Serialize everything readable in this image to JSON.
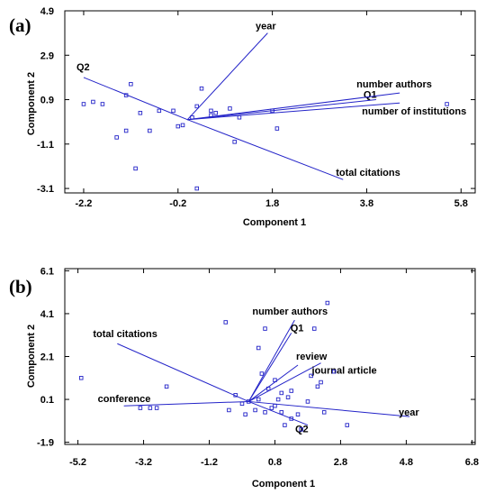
{
  "chart_data": [
    {
      "type": "scatter",
      "subtype": "biplot",
      "panel_label": "(a)",
      "xlabel": "Component 1",
      "ylabel": "Component 2",
      "xlim": [
        -2.6,
        6.1
      ],
      "ylim": [
        -3.3,
        4.9
      ],
      "xticks": [
        "-2.2",
        "-0.2",
        "1.8",
        "3.8",
        "5.8"
      ],
      "yticks": [
        "4.9",
        "2.9",
        "0.9",
        "-1.1",
        "-3.1"
      ],
      "vectors": [
        {
          "label": "year",
          "x": 1.7,
          "y": 3.9
        },
        {
          "label": "Q2",
          "x": -2.2,
          "y": 1.9
        },
        {
          "label": "Q1",
          "x": 4.0,
          "y": 0.9
        },
        {
          "label": "number authors",
          "x": 4.5,
          "y": 1.2
        },
        {
          "label": "number of institutions",
          "x": 4.5,
          "y": 0.75
        },
        {
          "label": "total citations",
          "x": 3.3,
          "y": -2.7
        }
      ],
      "points": [
        {
          "x": -2.2,
          "y": 0.7
        },
        {
          "x": -2.0,
          "y": 0.8
        },
        {
          "x": -1.8,
          "y": 0.7
        },
        {
          "x": -1.5,
          "y": -0.8
        },
        {
          "x": -1.3,
          "y": -0.5
        },
        {
          "x": -1.3,
          "y": 1.1
        },
        {
          "x": -1.2,
          "y": 1.6
        },
        {
          "x": -1.1,
          "y": -2.2
        },
        {
          "x": -1.0,
          "y": 0.3
        },
        {
          "x": -0.8,
          "y": -0.5
        },
        {
          "x": -0.6,
          "y": 0.4
        },
        {
          "x": -0.3,
          "y": 0.4
        },
        {
          "x": -0.2,
          "y": -0.3
        },
        {
          "x": -0.1,
          "y": -0.25
        },
        {
          "x": 0.1,
          "y": 0.1
        },
        {
          "x": 0.2,
          "y": 0.6
        },
        {
          "x": 0.3,
          "y": 1.4
        },
        {
          "x": 0.5,
          "y": 0.4
        },
        {
          "x": 0.5,
          "y": 0.2
        },
        {
          "x": 0.6,
          "y": 0.3
        },
        {
          "x": 0.9,
          "y": 0.5
        },
        {
          "x": 1.0,
          "y": -1.0
        },
        {
          "x": 0.2,
          "y": -3.1
        },
        {
          "x": 1.1,
          "y": 0.1
        },
        {
          "x": 1.8,
          "y": 0.4
        },
        {
          "x": 1.9,
          "y": -0.4
        },
        {
          "x": 5.5,
          "y": 0.7
        }
      ]
    },
    {
      "type": "scatter",
      "subtype": "biplot",
      "panel_label": "(b)",
      "xlabel": "Component 1",
      "ylabel": "Component 2",
      "xlim": [
        -5.6,
        6.9
      ],
      "ylim": [
        -2.0,
        6.2
      ],
      "xticks": [
        "-5.2",
        "-3.2",
        "-1.2",
        "0.8",
        "2.8",
        "4.8",
        "6.8"
      ],
      "yticks": [
        "6.1",
        "4.1",
        "2.1",
        "0.1",
        "-1.9"
      ],
      "vectors": [
        {
          "label": "total citations",
          "x": -4.0,
          "y": 2.7
        },
        {
          "label": "conference",
          "x": -3.8,
          "y": -0.2
        },
        {
          "label": "number authors",
          "x": 1.4,
          "y": 3.8
        },
        {
          "label": "Q1",
          "x": 1.3,
          "y": 3.2
        },
        {
          "label": "review",
          "x": 1.5,
          "y": 1.7
        },
        {
          "label": "journal article",
          "x": 2.2,
          "y": 1.8
        },
        {
          "label": "year",
          "x": 4.9,
          "y": -0.7
        },
        {
          "label": "Q2",
          "x": 1.8,
          "y": -1.1
        }
      ],
      "points": [
        {
          "x": -5.1,
          "y": 1.1
        },
        {
          "x": -3.3,
          "y": -0.3
        },
        {
          "x": -3.0,
          "y": -0.3
        },
        {
          "x": -2.8,
          "y": -0.3
        },
        {
          "x": -2.5,
          "y": 0.7
        },
        {
          "x": -0.7,
          "y": 3.7
        },
        {
          "x": -0.6,
          "y": -0.4
        },
        {
          "x": -0.4,
          "y": 0.3
        },
        {
          "x": -0.2,
          "y": -0.1
        },
        {
          "x": -0.1,
          "y": -0.6
        },
        {
          "x": 0.0,
          "y": 0.0
        },
        {
          "x": 0.2,
          "y": -0.4
        },
        {
          "x": 0.3,
          "y": 0.1
        },
        {
          "x": 0.3,
          "y": 2.5
        },
        {
          "x": 0.4,
          "y": 1.3
        },
        {
          "x": 0.5,
          "y": 3.4
        },
        {
          "x": 0.5,
          "y": -0.5
        },
        {
          "x": 0.6,
          "y": 0.6
        },
        {
          "x": 0.7,
          "y": -0.3
        },
        {
          "x": 0.8,
          "y": 1.0
        },
        {
          "x": 0.8,
          "y": -0.2
        },
        {
          "x": 0.9,
          "y": 0.1
        },
        {
          "x": 1.0,
          "y": -0.5
        },
        {
          "x": 1.0,
          "y": 0.4
        },
        {
          "x": 1.1,
          "y": -1.1
        },
        {
          "x": 1.2,
          "y": 0.2
        },
        {
          "x": 1.3,
          "y": 0.5
        },
        {
          "x": 1.3,
          "y": -0.8
        },
        {
          "x": 1.5,
          "y": -0.6
        },
        {
          "x": 1.6,
          "y": -1.3
        },
        {
          "x": 1.8,
          "y": 0.0
        },
        {
          "x": 1.9,
          "y": 1.2
        },
        {
          "x": 2.0,
          "y": 3.4
        },
        {
          "x": 2.1,
          "y": 0.7
        },
        {
          "x": 2.2,
          "y": 0.9
        },
        {
          "x": 2.3,
          "y": -0.5
        },
        {
          "x": 2.4,
          "y": 4.6
        },
        {
          "x": 2.6,
          "y": 1.4
        },
        {
          "x": 3.0,
          "y": -1.1
        }
      ]
    }
  ]
}
